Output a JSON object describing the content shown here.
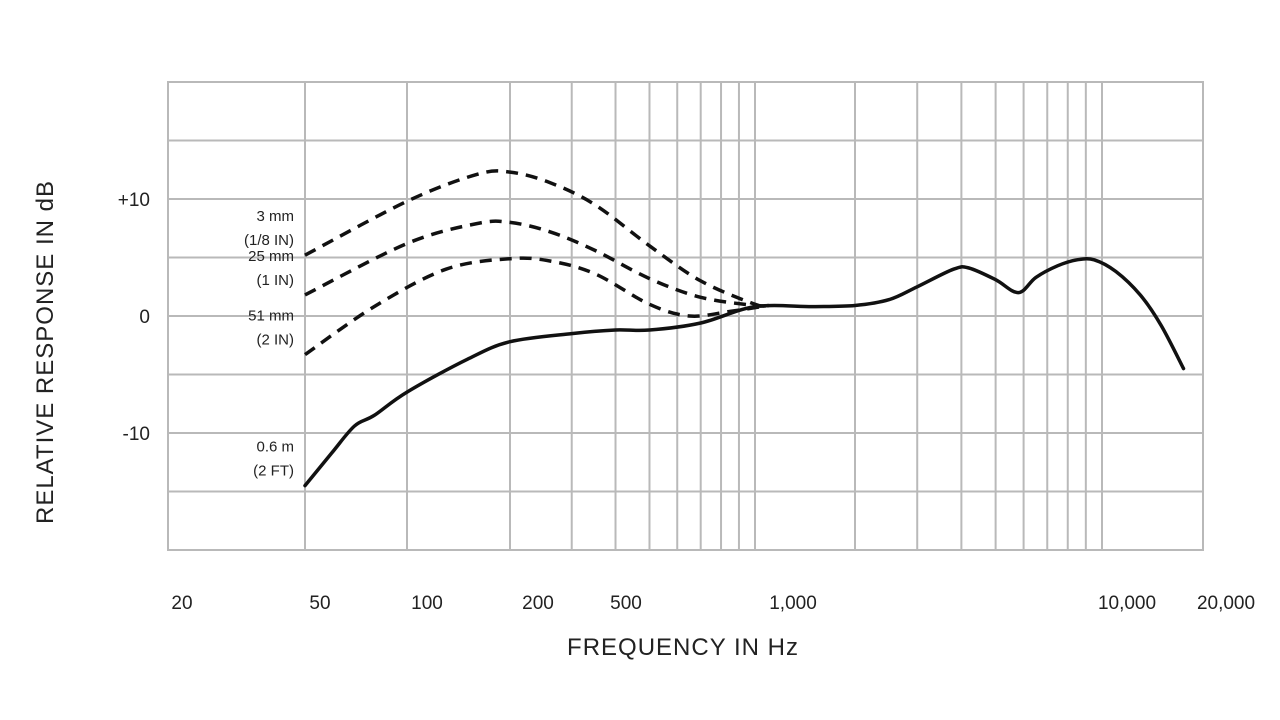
{
  "chart_data": {
    "type": "line",
    "xlabel": "FREQUENCY IN Hz",
    "ylabel": "RELATIVE RESPONSE IN dB",
    "x_scale": "log",
    "xlim": [
      20,
      20000
    ],
    "ylim": [
      -20,
      20
    ],
    "grid": true,
    "x_ticks": [
      {
        "value": 20,
        "label": "20"
      },
      {
        "value": 50,
        "label": "50"
      },
      {
        "value": 100,
        "label": "100"
      },
      {
        "value": 200,
        "label": "200"
      },
      {
        "value": 500,
        "label": "500"
      },
      {
        "value": 1000,
        "label": "1,000"
      },
      {
        "value": 10000,
        "label": "10,000"
      },
      {
        "value": 20000,
        "label": "20,000"
      }
    ],
    "y_ticks": [
      {
        "value": 10,
        "label": "+10"
      },
      {
        "value": 0,
        "label": "0"
      },
      {
        "value": -10,
        "label": "-10"
      }
    ],
    "series": [
      {
        "label_line1": "3 mm",
        "label_line2": "(1/8 IN)",
        "style": "dashed",
        "points": [
          [
            50,
            5.2
          ],
          [
            100,
            9.8
          ],
          [
            160,
            12.1
          ],
          [
            200,
            12.3
          ],
          [
            260,
            11.4
          ],
          [
            350,
            9.5
          ],
          [
            500,
            6.0
          ],
          [
            700,
            3.0
          ],
          [
            1000,
            1.0
          ],
          [
            1100,
            0.9
          ]
        ]
      },
      {
        "label_line1": "25 mm",
        "label_line2": "(1 IN)",
        "style": "dashed",
        "points": [
          [
            50,
            1.8
          ],
          [
            100,
            6.2
          ],
          [
            160,
            7.9
          ],
          [
            200,
            8.0
          ],
          [
            260,
            7.2
          ],
          [
            350,
            5.6
          ],
          [
            500,
            3.2
          ],
          [
            700,
            1.6
          ],
          [
            1000,
            0.9
          ],
          [
            1100,
            0.9
          ]
        ]
      },
      {
        "label_line1": "51 mm",
        "label_line2": "(2 IN)",
        "style": "dashed",
        "points": [
          [
            50,
            -3.3
          ],
          [
            80,
            0.8
          ],
          [
            130,
            4.0
          ],
          [
            200,
            4.9
          ],
          [
            260,
            4.7
          ],
          [
            350,
            3.6
          ],
          [
            500,
            1.0
          ],
          [
            650,
            0.0
          ],
          [
            850,
            0.4
          ],
          [
            1100,
            0.9
          ]
        ]
      },
      {
        "label_line1": "0.6 m",
        "label_line2": "(2 FT)",
        "style": "solid",
        "points": [
          [
            50,
            -14.5
          ],
          [
            60,
            -11.7
          ],
          [
            70,
            -9.4
          ],
          [
            80,
            -8.5
          ],
          [
            100,
            -6.5
          ],
          [
            150,
            -3.7
          ],
          [
            200,
            -2.2
          ],
          [
            300,
            -1.5
          ],
          [
            400,
            -1.2
          ],
          [
            500,
            -1.2
          ],
          [
            700,
            -0.6
          ],
          [
            1000,
            0.8
          ],
          [
            1500,
            0.8
          ],
          [
            2000,
            0.9
          ],
          [
            2500,
            1.4
          ],
          [
            3000,
            2.5
          ],
          [
            3800,
            4.0
          ],
          [
            4200,
            4.1
          ],
          [
            5000,
            3.1
          ],
          [
            5800,
            2.0
          ],
          [
            6500,
            3.3
          ],
          [
            7500,
            4.3
          ],
          [
            8500,
            4.8
          ],
          [
            9500,
            4.8
          ],
          [
            11000,
            3.8
          ],
          [
            13000,
            1.8
          ],
          [
            15000,
            -0.8
          ],
          [
            17500,
            -4.5
          ]
        ]
      }
    ]
  }
}
